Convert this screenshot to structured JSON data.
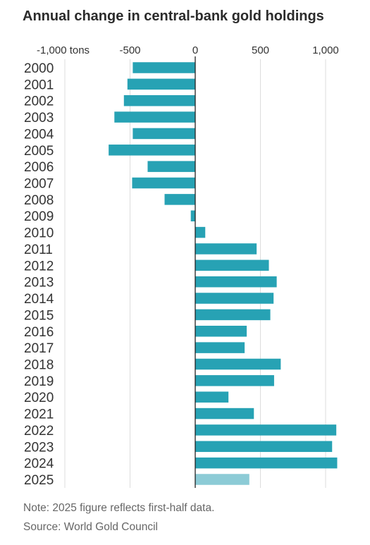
{
  "chart_data": {
    "type": "bar",
    "orientation": "horizontal",
    "title": "Annual change in central-bank gold holdings",
    "x_ticks": [
      {
        "value": -1000,
        "label": "-1,000 tons"
      },
      {
        "value": -500,
        "label": "-500"
      },
      {
        "value": 0,
        "label": "0"
      },
      {
        "value": 500,
        "label": "500"
      },
      {
        "value": 1000,
        "label": "1,000"
      }
    ],
    "xlim": [
      -1000,
      1100
    ],
    "categories": [
      "2000",
      "2001",
      "2002",
      "2003",
      "2004",
      "2005",
      "2006",
      "2007",
      "2008",
      "2009",
      "2010",
      "2011",
      "2012",
      "2013",
      "2014",
      "2015",
      "2016",
      "2017",
      "2018",
      "2019",
      "2020",
      "2021",
      "2022",
      "2023",
      "2024",
      "2025"
    ],
    "values": [
      -479,
      -520,
      -547,
      -620,
      -479,
      -664,
      -365,
      -484,
      -235,
      -34,
      77,
      471,
      565,
      625,
      601,
      576,
      395,
      379,
      656,
      605,
      255,
      450,
      1082,
      1050,
      1089,
      415
    ],
    "partial_categories": [
      "2025"
    ],
    "grid": true,
    "colors": {
      "bar": "#27a2b4",
      "bar_partial": "#8ccbd6",
      "grid": "#dcdcdc",
      "zero_line": "#222222"
    }
  },
  "footer": {
    "note": "Note: 2025 figure reflects first-half data.",
    "source": "Source: World Gold Council"
  }
}
